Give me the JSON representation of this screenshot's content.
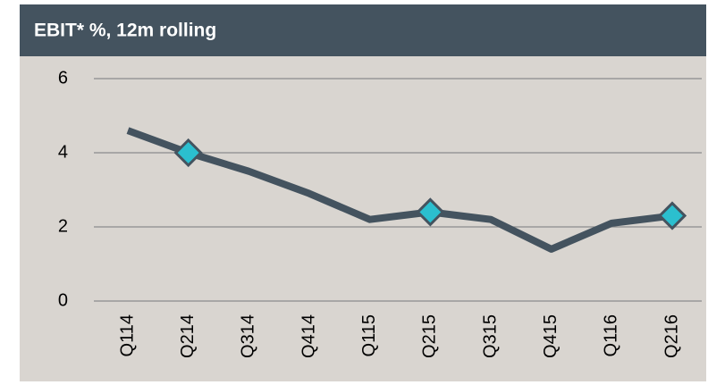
{
  "chart_data": {
    "type": "line",
    "title": "EBIT* %, 12m rolling",
    "categories": [
      "Q114",
      "Q214",
      "Q314",
      "Q414",
      "Q115",
      "Q215",
      "Q315",
      "Q415",
      "Q116",
      "Q216"
    ],
    "values": [
      4.6,
      4.0,
      3.5,
      2.9,
      2.2,
      2.4,
      2.2,
      1.4,
      2.1,
      2.3
    ],
    "color": "#44535f",
    "marker_indices": [
      1,
      5,
      9
    ],
    "marker_color": "#2bbfcf",
    "ylim": [
      0,
      6
    ],
    "yticks": [
      0,
      2,
      4,
      6
    ],
    "grid": true
  }
}
